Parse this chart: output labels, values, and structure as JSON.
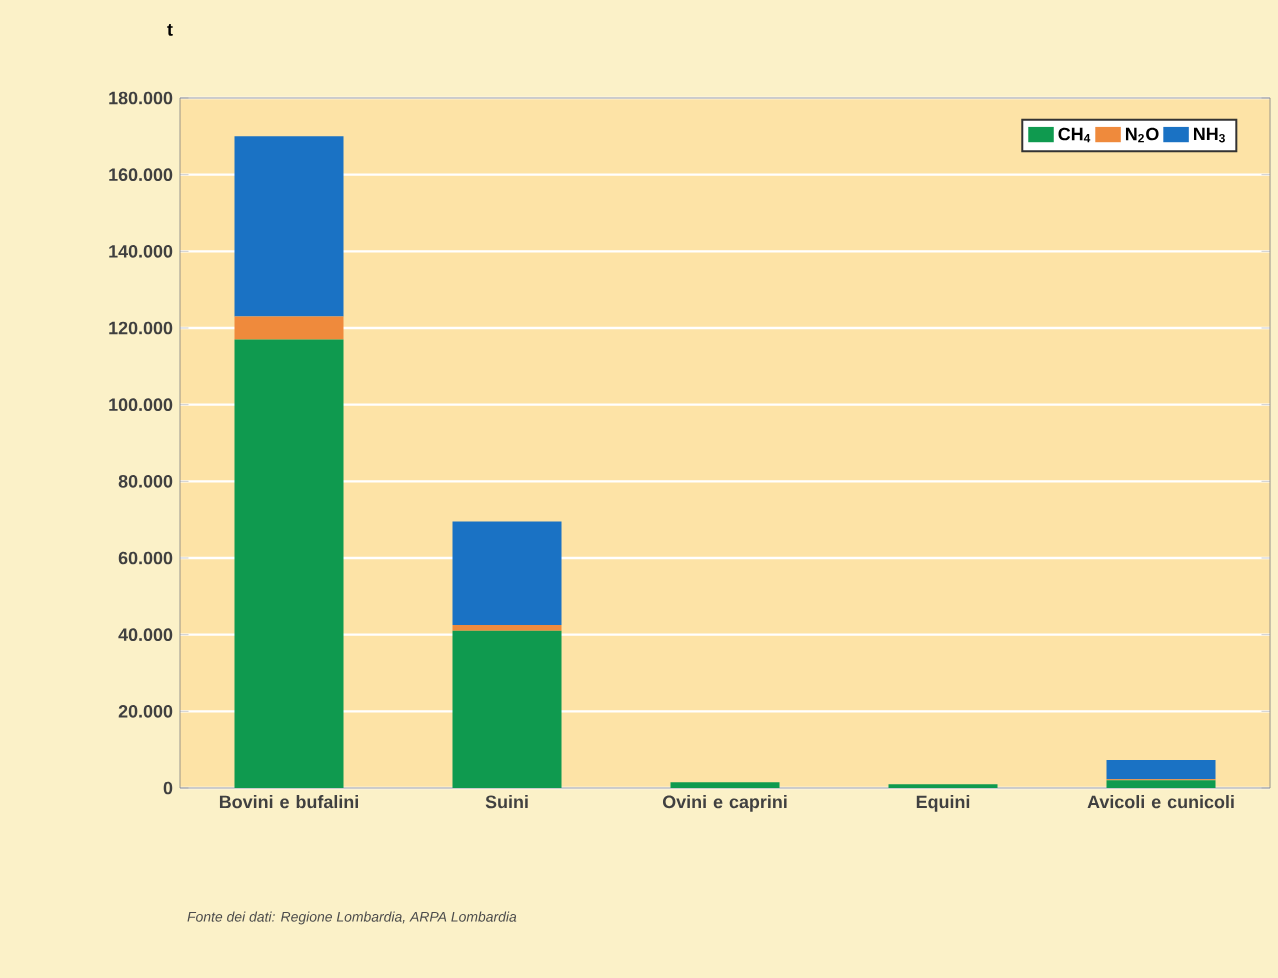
{
  "chart_data": {
    "type": "bar",
    "stacked": true,
    "ylabel": "t",
    "categories": [
      "Bovini e bufalini",
      "Suini",
      "Ovini e caprini",
      "Equini",
      "Avicoli e cunicoli"
    ],
    "series": [
      {
        "name": "CH$_{4}$",
        "color": "#0f9a4f",
        "values": [
          117000,
          41000,
          1500,
          1000,
          2000
        ]
      },
      {
        "name": "N$_{2}$O",
        "color": "#ef8a3c",
        "values": [
          6000,
          1500,
          0,
          0,
          300
        ]
      },
      {
        "name": "NH$_{3}$",
        "color": "#1a72c4",
        "values": [
          47000,
          27000,
          0,
          0,
          5000
        ]
      }
    ],
    "ylim": [
      0,
      180000
    ],
    "yticks": [
      {
        "value": 0,
        "label": "0"
      },
      {
        "value": 20000,
        "label": "20.000"
      },
      {
        "value": 40000,
        "label": "40.000"
      },
      {
        "value": 60000,
        "label": "60.000"
      },
      {
        "value": 80000,
        "label": "80.000"
      },
      {
        "value": 100000,
        "label": "100.000"
      },
      {
        "value": 120000,
        "label": "120.000"
      },
      {
        "value": 140000,
        "label": "140.000"
      },
      {
        "value": 160000,
        "label": "160.000"
      },
      {
        "value": 180000,
        "label": "180.000"
      }
    ],
    "grid": "y",
    "legend": "top right",
    "annotations": [
      "Fonte dei dati: Regione Lombardia, ARPA Lombardia"
    ]
  }
}
